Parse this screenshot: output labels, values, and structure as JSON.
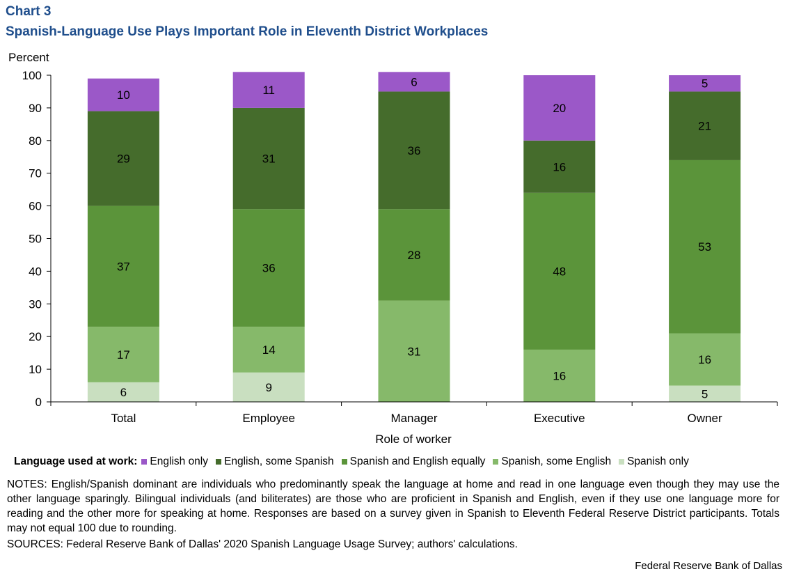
{
  "header": {
    "chart_number": "Chart 3",
    "title": "Spanish-Language Use Plays Important Role in Eleventh District Workplaces"
  },
  "chart_data": {
    "type": "bar",
    "stacked": true,
    "title": "Spanish-Language Use Plays Important Role in Eleventh District Workplaces",
    "xlabel": "Role of worker",
    "ylabel": "Percent",
    "ylim": [
      0,
      100
    ],
    "yticks": [
      0,
      10,
      20,
      30,
      40,
      50,
      60,
      70,
      80,
      90,
      100
    ],
    "categories": [
      "Total",
      "Employee",
      "Manager",
      "Executive",
      "Owner"
    ],
    "series": [
      {
        "name": "Spanish only",
        "color": "#c9dfc0",
        "values": [
          6,
          9,
          0,
          0,
          5
        ],
        "labels": [
          "6",
          "9",
          "",
          "",
          "5"
        ]
      },
      {
        "name": "Spanish, some English",
        "color": "#86b96a",
        "values": [
          17,
          14,
          31,
          16,
          16
        ],
        "labels": [
          "17",
          "14",
          "31",
          "16",
          "16"
        ]
      },
      {
        "name": "Spanish and English equally",
        "color": "#5b943a",
        "values": [
          37,
          36,
          28,
          48,
          53
        ],
        "labels": [
          "37",
          "36",
          "28",
          "48",
          "53"
        ]
      },
      {
        "name": "English, some Spanish",
        "color": "#456c2c",
        "values": [
          29,
          31,
          36,
          16,
          21
        ],
        "labels": [
          "29",
          "31",
          "36",
          "16",
          "21"
        ]
      },
      {
        "name": "English only",
        "color": "#9b58c8",
        "values": [
          10,
          11,
          6,
          20,
          5
        ],
        "labels": [
          "10",
          "11",
          "6",
          "20",
          "5"
        ]
      }
    ]
  },
  "legend": {
    "title": "Language used at work:",
    "items": [
      {
        "label": "English only",
        "color": "#9b58c8"
      },
      {
        "label": "English, some Spanish",
        "color": "#456c2c"
      },
      {
        "label": "Spanish and English equally",
        "color": "#5b943a"
      },
      {
        "label": "Spanish, some English",
        "color": "#86b96a"
      },
      {
        "label": "Spanish only",
        "color": "#c9dfc0"
      }
    ]
  },
  "notes": "NOTES: English/Spanish dominant are individuals who predominantly speak the language at home and read in one language even though they may use the other language sparingly. Bilingual individuals (and biliterates) are those who are proficient in Spanish and English, even if they use one language more for reading and the other more for speaking at home. Responses are based on a survey given in Spanish to Eleventh Federal Reserve District participants. Totals may not equal 100 due to rounding.",
  "sources": "SOURCES: Federal Reserve Bank of Dallas' 2020 Spanish Language Usage Survey; authors' calculations.",
  "credit": "Federal Reserve Bank of Dallas"
}
